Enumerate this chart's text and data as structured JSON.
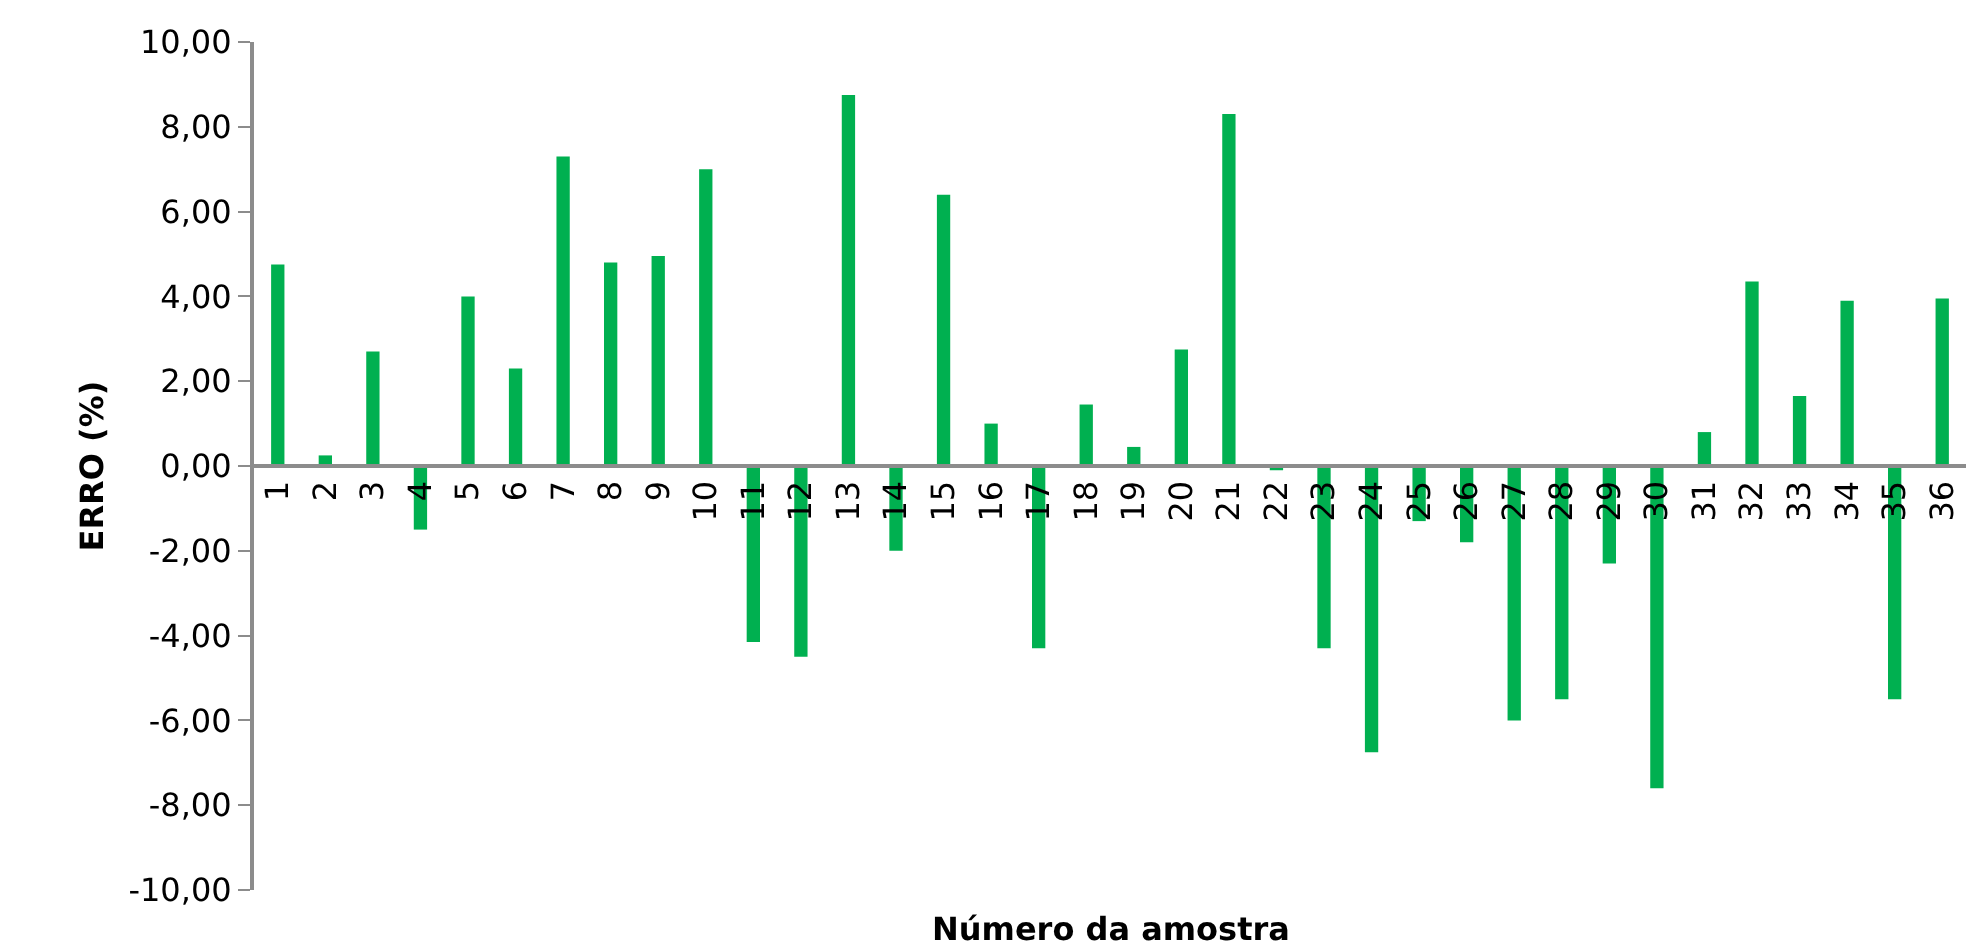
{
  "chart_data": {
    "type": "bar",
    "xlabel": "Número da amostra",
    "ylabel": "ERRO (%)",
    "categories": [
      "1",
      "2",
      "3",
      "4",
      "5",
      "6",
      "7",
      "8",
      "9",
      "10",
      "11",
      "12",
      "13",
      "14",
      "15",
      "16",
      "17",
      "18",
      "19",
      "20",
      "21",
      "22",
      "23",
      "24",
      "25",
      "26",
      "27",
      "28",
      "29",
      "30",
      "31",
      "32",
      "33",
      "34",
      "35",
      "36"
    ],
    "values": [
      4.75,
      0.25,
      2.7,
      -1.5,
      4.0,
      2.3,
      7.3,
      4.8,
      4.95,
      7.0,
      -4.15,
      -4.5,
      8.75,
      -2.0,
      6.4,
      1.0,
      -4.3,
      1.45,
      0.45,
      2.75,
      8.3,
      -0.1,
      -4.3,
      -6.75,
      -1.3,
      -1.8,
      -6.0,
      -5.5,
      -2.3,
      -7.6,
      0.8,
      4.35,
      1.65,
      3.9,
      -5.5,
      3.95
    ],
    "color": "#00b050",
    "ylim": [
      -10,
      10
    ],
    "yticks": [
      {
        "value": -10,
        "label": "-10,00"
      },
      {
        "value": -8,
        "label": "-8,00"
      },
      {
        "value": -6,
        "label": "-6,00"
      },
      {
        "value": -4,
        "label": "-4,00"
      },
      {
        "value": -2,
        "label": "-2,00"
      },
      {
        "value": 0,
        "label": "0,00"
      },
      {
        "value": 2,
        "label": "2,00"
      },
      {
        "value": 4,
        "label": "4,00"
      },
      {
        "value": 6,
        "label": "6,00"
      },
      {
        "value": 8,
        "label": "8,00"
      },
      {
        "value": 10,
        "label": "10,00"
      }
    ],
    "marker": "none"
  }
}
